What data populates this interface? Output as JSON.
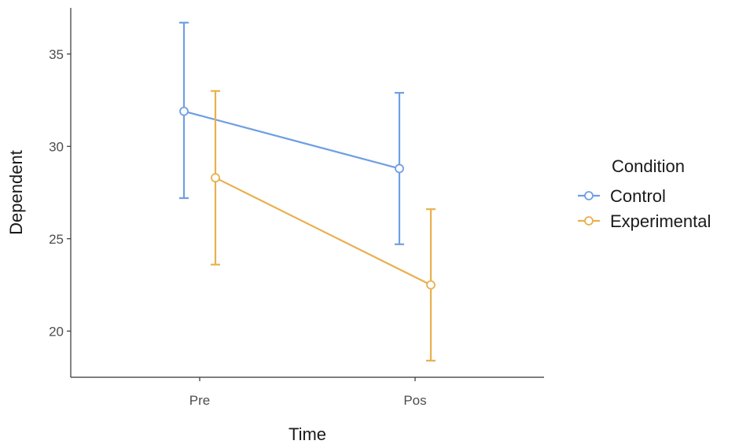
{
  "chart_data": {
    "type": "line",
    "x_categories": [
      "Pre",
      "Pos"
    ],
    "xlabel": "Time",
    "ylabel": "Dependent",
    "ylim": [
      17.5,
      37.5
    ],
    "y_ticks": [
      20,
      25,
      30,
      35
    ],
    "legend": {
      "title": "Condition",
      "position": "right"
    },
    "series": [
      {
        "name": "Control",
        "color": "#6f9fe3",
        "values": [
          31.9,
          28.8
        ],
        "error_low": [
          27.2,
          24.7
        ],
        "error_high": [
          36.7,
          32.9
        ]
      },
      {
        "name": "Experimental",
        "color": "#e8b04e",
        "values": [
          28.3,
          22.5
        ],
        "error_low": [
          23.6,
          18.4
        ],
        "error_high": [
          33.0,
          26.6
        ]
      }
    ],
    "grid": false
  }
}
